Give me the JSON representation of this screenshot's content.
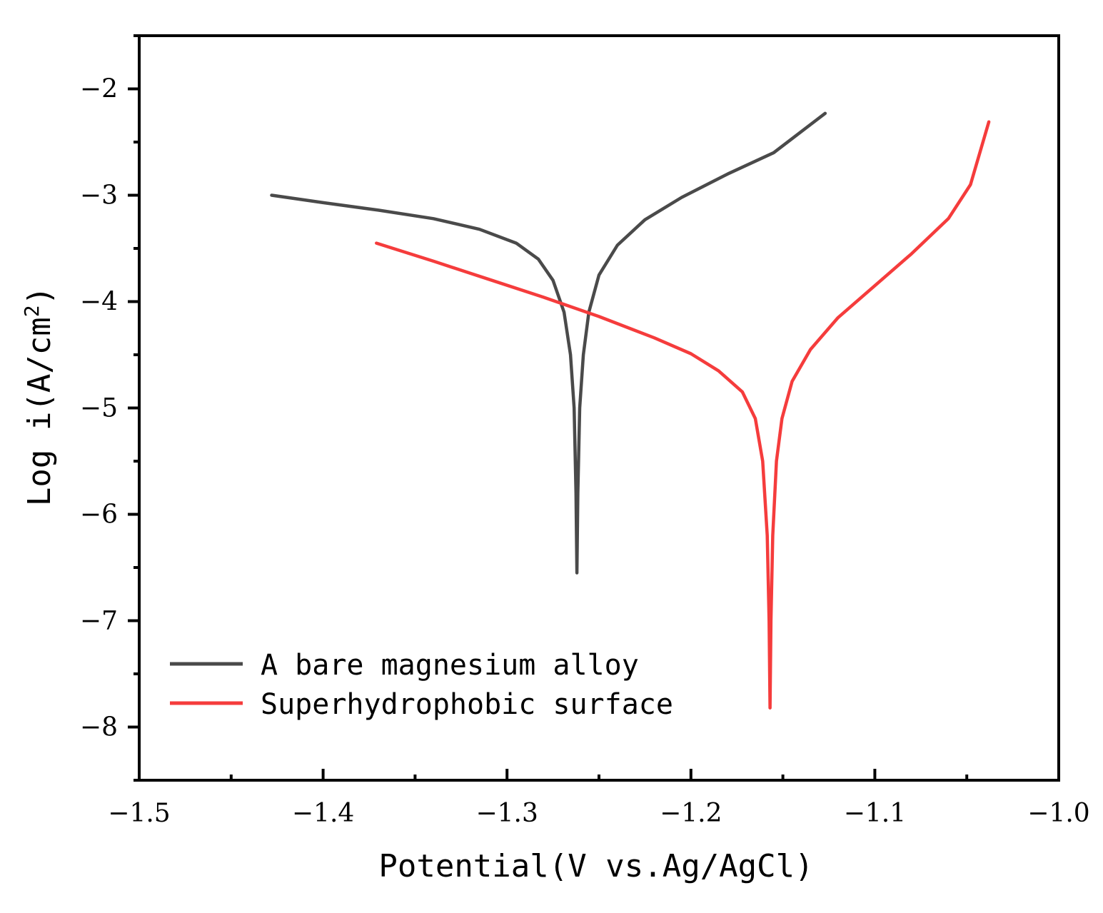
{
  "chart_data": {
    "type": "line",
    "title": "",
    "xlabel": "Potential(V vs.Ag/AgCl)",
    "ylabel_main": "Log i(A/cm",
    "ylabel_sup": "2",
    "ylabel_close": ")",
    "xlim": [
      -1.5,
      -1.0
    ],
    "ylim": [
      -8.5,
      -1.5
    ],
    "xticks": [
      -1.5,
      -1.4,
      -1.3,
      -1.2,
      -1.1,
      -1.0
    ],
    "xtick_labels": [
      "−1.5",
      "−1.4",
      "−1.3",
      "−1.2",
      "−1.1",
      "−1.0"
    ],
    "yticks": [
      -2,
      -3,
      -4,
      -5,
      -6,
      -7,
      -8
    ],
    "ytick_labels": [
      "−2",
      "−3",
      "−4",
      "−5",
      "−6",
      "−7",
      "−8"
    ],
    "grid": false,
    "legend_position": "bottom-left",
    "series": [
      {
        "name": "A bare magnesium alloy",
        "color": "#4a4a4a",
        "points": [
          [
            -1.428,
            -3.0
          ],
          [
            -1.4,
            -3.07
          ],
          [
            -1.37,
            -3.14
          ],
          [
            -1.34,
            -3.22
          ],
          [
            -1.315,
            -3.32
          ],
          [
            -1.295,
            -3.45
          ],
          [
            -1.283,
            -3.6
          ],
          [
            -1.275,
            -3.8
          ],
          [
            -1.269,
            -4.1
          ],
          [
            -1.2655,
            -4.5
          ],
          [
            -1.2635,
            -5.0
          ],
          [
            -1.2625,
            -5.8
          ],
          [
            -1.262,
            -6.55
          ],
          [
            -1.2615,
            -5.8
          ],
          [
            -1.2605,
            -5.0
          ],
          [
            -1.2585,
            -4.5
          ],
          [
            -1.2555,
            -4.1
          ],
          [
            -1.25,
            -3.75
          ],
          [
            -1.24,
            -3.47
          ],
          [
            -1.225,
            -3.23
          ],
          [
            -1.205,
            -3.02
          ],
          [
            -1.18,
            -2.8
          ],
          [
            -1.155,
            -2.6
          ],
          [
            -1.127,
            -2.23
          ]
        ]
      },
      {
        "name": "Superhydrophobic surface",
        "color": "#f53c3c",
        "points": [
          [
            -1.371,
            -3.45
          ],
          [
            -1.34,
            -3.62
          ],
          [
            -1.31,
            -3.79
          ],
          [
            -1.28,
            -3.96
          ],
          [
            -1.25,
            -4.14
          ],
          [
            -1.22,
            -4.34
          ],
          [
            -1.2,
            -4.49
          ],
          [
            -1.185,
            -4.65
          ],
          [
            -1.172,
            -4.85
          ],
          [
            -1.165,
            -5.1
          ],
          [
            -1.161,
            -5.5
          ],
          [
            -1.1585,
            -6.2
          ],
          [
            -1.1575,
            -7.0
          ],
          [
            -1.157,
            -7.82
          ],
          [
            -1.1565,
            -7.0
          ],
          [
            -1.1555,
            -6.2
          ],
          [
            -1.1535,
            -5.5
          ],
          [
            -1.1505,
            -5.1
          ],
          [
            -1.145,
            -4.75
          ],
          [
            -1.135,
            -4.45
          ],
          [
            -1.12,
            -4.15
          ],
          [
            -1.1,
            -3.85
          ],
          [
            -1.08,
            -3.55
          ],
          [
            -1.06,
            -3.22
          ],
          [
            -1.048,
            -2.9
          ],
          [
            -1.038,
            -2.31
          ]
        ]
      }
    ]
  }
}
